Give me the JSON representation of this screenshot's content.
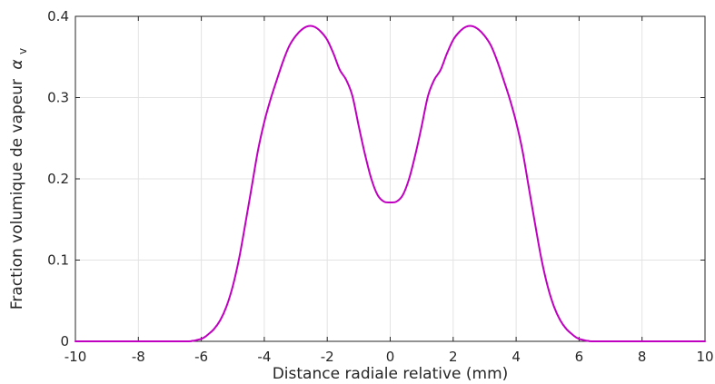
{
  "chart_data": {
    "type": "line",
    "title": "",
    "xlabel": "Distance radiale relative (mm)",
    "ylabel": "Fraction volumique de vapeur",
    "ylabel_symbol": "α",
    "ylabel_subscript": "v",
    "xlim": [
      -10,
      10
    ],
    "ylim": [
      0,
      0.4
    ],
    "xticks": [
      -10,
      -8,
      -6,
      -4,
      -2,
      0,
      2,
      4,
      6,
      8,
      10
    ],
    "yticks": [
      0,
      0.1,
      0.2,
      0.3,
      0.4
    ],
    "xtick_labels": [
      "-10",
      "-8",
      "-6",
      "-4",
      "-2",
      "0",
      "2",
      "4",
      "6",
      "8",
      "10"
    ],
    "ytick_labels": [
      "0",
      "0.1",
      "0.2",
      "0.3",
      "0.4"
    ],
    "grid": true,
    "colors": {
      "line": "#c000c0",
      "axis": "#262626",
      "grid": "#e3e3e3"
    },
    "series": [
      {
        "x": [
          -10,
          -8,
          -6.5,
          -6.3,
          -6.2,
          -6.1,
          -6.0,
          -5.9,
          -5.8,
          -5.6,
          -5.4,
          -5.2,
          -5.0,
          -4.8,
          -4.6,
          -4.4,
          -4.2,
          -4.0,
          -3.8,
          -3.6,
          -3.4,
          -3.2,
          -3.0,
          -2.8,
          -2.6,
          -2.4,
          -2.2,
          -2.0,
          -1.8,
          -1.6,
          -1.4,
          -1.2,
          -1.0,
          -0.8,
          -0.6,
          -0.4,
          -0.2,
          0.0,
          0.2,
          0.4,
          0.6,
          0.8,
          1.0,
          1.2,
          1.4,
          1.6,
          1.8,
          2.0,
          2.2,
          2.4,
          2.6,
          2.8,
          3.0,
          3.2,
          3.4,
          3.6,
          3.8,
          4.0,
          4.2,
          4.4,
          4.6,
          4.8,
          5.0,
          5.2,
          5.4,
          5.6,
          5.8,
          5.9,
          6.0,
          6.1,
          6.2,
          6.3,
          6.5,
          8,
          10
        ],
        "y": [
          0,
          0,
          0,
          0.0005,
          0.001,
          0.002,
          0.003,
          0.005,
          0.008,
          0.015,
          0.026,
          0.043,
          0.068,
          0.102,
          0.145,
          0.19,
          0.235,
          0.27,
          0.298,
          0.322,
          0.345,
          0.364,
          0.376,
          0.384,
          0.388,
          0.387,
          0.381,
          0.371,
          0.354,
          0.334,
          0.322,
          0.302,
          0.265,
          0.23,
          0.2,
          0.18,
          0.172,
          0.171,
          0.172,
          0.18,
          0.2,
          0.23,
          0.265,
          0.302,
          0.322,
          0.334,
          0.354,
          0.371,
          0.381,
          0.387,
          0.388,
          0.384,
          0.376,
          0.364,
          0.345,
          0.322,
          0.298,
          0.27,
          0.235,
          0.19,
          0.145,
          0.102,
          0.068,
          0.043,
          0.026,
          0.015,
          0.008,
          0.005,
          0.003,
          0.002,
          0.001,
          0.0005,
          0,
          0,
          0
        ]
      }
    ]
  }
}
